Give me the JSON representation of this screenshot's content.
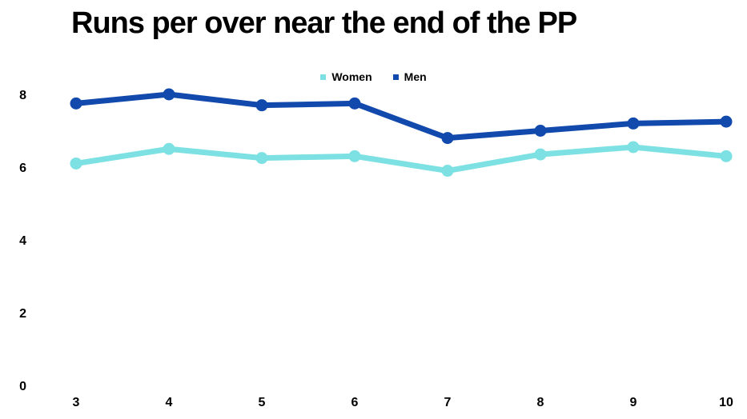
{
  "chart": {
    "title": "Runs per over near the end of the PP"
  },
  "chart_data": {
    "type": "line",
    "title": "Runs per over near the end of the PP",
    "x": [
      3,
      4,
      5,
      6,
      7,
      8,
      9,
      10
    ],
    "series": [
      {
        "name": "Women",
        "color": "#7DE1E3",
        "values": [
          6.1,
          6.5,
          6.25,
          6.3,
          5.9,
          6.35,
          6.55,
          6.3
        ]
      },
      {
        "name": "Men",
        "color": "#1149AC",
        "values": [
          7.75,
          8.0,
          7.7,
          7.75,
          6.8,
          7.0,
          7.2,
          7.25
        ]
      }
    ],
    "xlabel": "",
    "ylabel": "",
    "xlim": [
      3,
      10
    ],
    "ylim": [
      0,
      8
    ],
    "xticks": [
      3,
      4,
      5,
      6,
      7,
      8,
      9,
      10
    ],
    "yticks": [
      0,
      2,
      4,
      6,
      8
    ],
    "grid": false,
    "axes_lines": false,
    "legend_position": "top-center",
    "marker": "circle",
    "line_width": 7,
    "marker_radius": 7.5
  },
  "colors": {
    "background": "#ffffff",
    "text": "#000000",
    "women_series": "#7DE1E3",
    "men_series": "#1149AC"
  }
}
